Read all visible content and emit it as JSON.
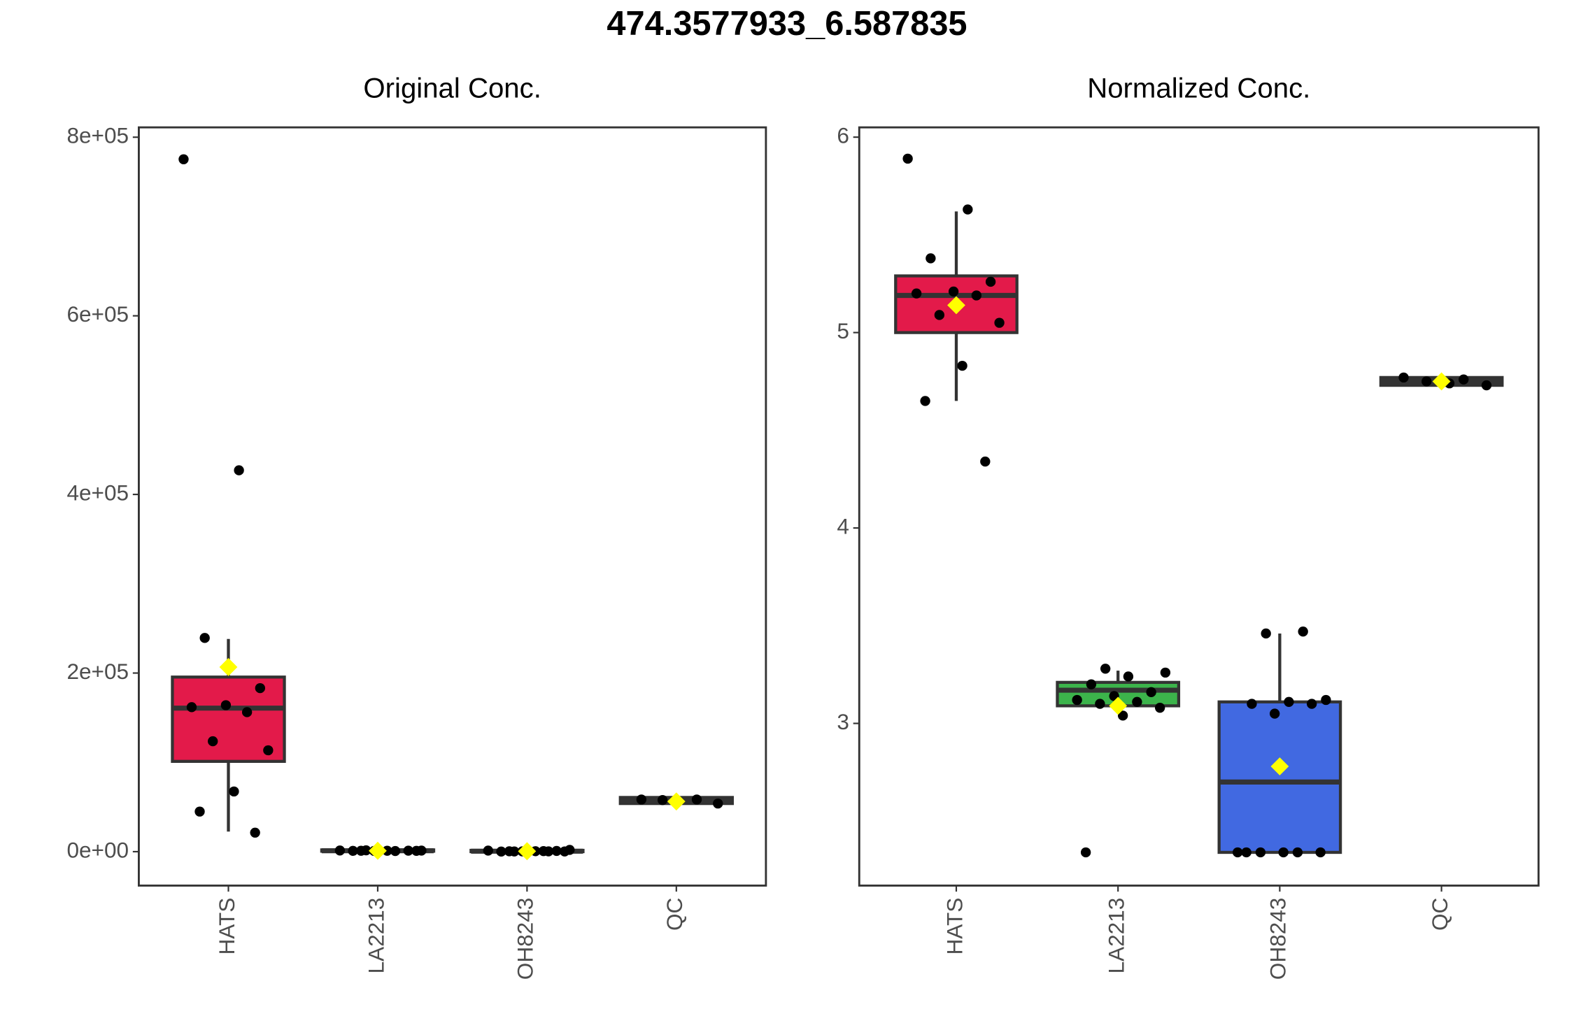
{
  "title": "474.3577933_6.587835",
  "chart_data": [
    {
      "type": "box",
      "title": "Original Conc.",
      "categories": [
        "HATS",
        "LA2213",
        "OH8243",
        "QC"
      ],
      "colors": [
        "#e31a4a",
        "#3cb44b",
        "#4169e1",
        "#999999"
      ],
      "ylim": [
        -38000,
        811000
      ],
      "yticks": [
        {
          "value": 0,
          "label": "0e+00"
        },
        {
          "value": 200000,
          "label": "2e+05"
        },
        {
          "value": 400000,
          "label": "4e+05"
        },
        {
          "value": 600000,
          "label": "6e+05"
        },
        {
          "value": 800000,
          "label": "8e+05"
        }
      ],
      "boxes": [
        {
          "whisker_low": 22500,
          "q1": 101100,
          "median": 160700,
          "q3": 195500,
          "whisker_high": 238200,
          "mean": 206700,
          "points": [
            775300,
            427000,
            239300,
            183100,
            164000,
            161800,
            156200,
            123600,
            113500,
            67400,
            44900,
            21300
          ]
        },
        {
          "whisker_low": 0,
          "q1": 500,
          "median": 1000,
          "q3": 2000,
          "whisker_high": 3000,
          "mean": 1000,
          "points": [
            1500,
            1200,
            1000,
            900,
            1100,
            800,
            1300,
            700,
            1000,
            900
          ]
        },
        {
          "whisker_low": 0,
          "q1": 0,
          "median": 500,
          "q3": 1500,
          "whisker_high": 2500,
          "mean": 500,
          "points": [
            300,
            200,
            2000,
            500,
            100,
            800,
            300,
            1200,
            600,
            400,
            200
          ]
        },
        {
          "whisker_low": 53900,
          "q1": 53900,
          "median": 57300,
          "q3": 60700,
          "whisker_high": 60700,
          "mean": 56200,
          "points": [
            58400,
            58400,
            57800,
            53900
          ]
        }
      ]
    },
    {
      "type": "box",
      "title": "Normalized Conc.",
      "categories": [
        "HATS",
        "LA2213",
        "OH8243",
        "QC"
      ],
      "colors": [
        "#e31a4a",
        "#3cb44b",
        "#4169e1",
        "#999999"
      ],
      "ylim": [
        2.17,
        6.05
      ],
      "yticks": [
        3,
        4,
        5,
        6
      ],
      "boxes": [
        {
          "whisker_low": 4.65,
          "q1": 5.0,
          "median": 5.19,
          "q3": 5.29,
          "whisker_high": 5.62,
          "mean": 5.14,
          "points": [
            5.89,
            5.63,
            5.38,
            5.26,
            5.21,
            5.2,
            5.19,
            5.09,
            5.05,
            4.83,
            4.65,
            4.34
          ]
        },
        {
          "whisker_low": 3.09,
          "q1": 3.09,
          "median": 3.17,
          "q3": 3.21,
          "whisker_high": 3.27,
          "mean": 3.09,
          "points": [
            3.28,
            3.26,
            3.24,
            3.2,
            3.16,
            3.14,
            3.12,
            3.11,
            3.1,
            3.08,
            3.04,
            2.34
          ]
        },
        {
          "whisker_low": 2.34,
          "q1": 2.34,
          "median": 2.7,
          "q3": 3.11,
          "whisker_high": 3.46,
          "mean": 2.78,
          "points": [
            3.47,
            3.46,
            3.12,
            3.11,
            3.1,
            3.1,
            3.05,
            2.34,
            2.34,
            2.34,
            2.34,
            2.34,
            2.34
          ]
        },
        {
          "whisker_low": 4.73,
          "q1": 4.73,
          "median": 4.75,
          "q3": 4.77,
          "whisker_high": 4.77,
          "mean": 4.75,
          "points": [
            4.77,
            4.76,
            4.75,
            4.73,
            4.74
          ]
        }
      ]
    }
  ]
}
